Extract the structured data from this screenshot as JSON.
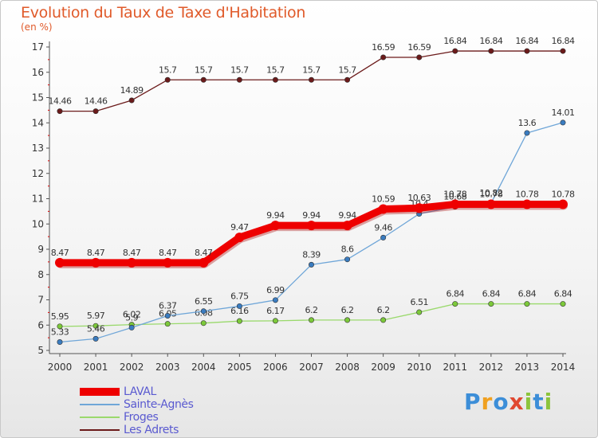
{
  "title": "Evolution du Taux de Taxe d'Habitation",
  "unit_label": "(en %)",
  "brand": {
    "letters": [
      {
        "ch": "P",
        "color": "#3c8ed8"
      },
      {
        "ch": "r",
        "color": "#f0a020"
      },
      {
        "ch": "o",
        "color": "#3c8ed8"
      },
      {
        "ch": "x",
        "color": "#e04830"
      },
      {
        "ch": "i",
        "color": "#8cc43c"
      },
      {
        "ch": "t",
        "color": "#3c8ed8"
      },
      {
        "ch": "i",
        "color": "#8cc43c"
      }
    ]
  },
  "chart_data": {
    "type": "line",
    "title": "Evolution du Taux de Taxe d'Habitation",
    "ylabel": "(en %)",
    "xlabel": "",
    "ylim": [
      5,
      17
    ],
    "yticks": [
      "5",
      "6",
      "7",
      "8",
      "9",
      "10",
      "11",
      "12",
      "13",
      "14",
      "15",
      "16",
      "17"
    ],
    "x": [
      "2000",
      "2001",
      "2002",
      "2003",
      "2004",
      "2005",
      "2006",
      "2007",
      "2008",
      "2009",
      "2010",
      "2011",
      "2012",
      "2013",
      "2014"
    ],
    "legend_position": "bottom-left",
    "series": [
      {
        "name": "Les Adrets",
        "color": "#6b1a1a",
        "marker": "#6b1a1a",
        "values": [
          14.46,
          14.46,
          14.89,
          15.7,
          15.7,
          15.7,
          15.7,
          15.7,
          15.7,
          16.59,
          16.59,
          16.84,
          16.84,
          16.84,
          16.84
        ],
        "labels": [
          "14.46",
          "14.46",
          "14.89",
          "15.7",
          "15.7",
          "15.7",
          "15.7",
          "15.7",
          "15.7",
          "16.59",
          "16.59",
          "16.84",
          "16.84",
          "16.84",
          "16.84"
        ]
      },
      {
        "name": "Froges",
        "color": "#9ad96c",
        "marker": "#7cc93a",
        "values": [
          5.95,
          5.97,
          6.02,
          6.05,
          6.08,
          6.16,
          6.17,
          6.2,
          6.2,
          6.2,
          6.51,
          6.84,
          6.84,
          6.84,
          6.84
        ],
        "labels": [
          "5.95",
          "5.97",
          "6.02",
          "6.05",
          "6.08",
          "6.16",
          "6.17",
          "6.2",
          "6.2",
          "6.2",
          "6.51",
          "6.84",
          "6.84",
          "6.84",
          "6.84"
        ]
      },
      {
        "name": "Sainte-Agnès",
        "color": "#6fa6d8",
        "marker": "#3a7cc0",
        "values": [
          5.33,
          5.46,
          5.9,
          6.37,
          6.55,
          6.75,
          6.99,
          8.39,
          8.6,
          9.46,
          10.4,
          10.68,
          10.82,
          13.6,
          14.01
        ],
        "labels": [
          "5.33",
          "5.46",
          "5.9",
          "6.37",
          "6.55",
          "6.75",
          "6.99",
          "8.39",
          "8.6",
          "9.46",
          "10.4",
          "10.68",
          "10.82",
          "13.6",
          "14.01"
        ]
      },
      {
        "name": "LAVAL",
        "color": "#ee0000",
        "marker": "#ee0000",
        "values": [
          8.47,
          8.47,
          8.47,
          8.47,
          8.47,
          9.47,
          9.94,
          9.94,
          9.94,
          10.59,
          10.63,
          10.78,
          10.78,
          10.78,
          10.78
        ],
        "labels": [
          "8.47",
          "8.47",
          "8.47",
          "8.47",
          "8.47",
          "9.47",
          "9.94",
          "9.94",
          "9.94",
          "10.59",
          "10.63",
          "10.78",
          "10.78",
          "10.78",
          "10.78"
        ]
      }
    ],
    "legend": [
      {
        "name": "LAVAL",
        "color": "#ee0000",
        "thick": true
      },
      {
        "name": "Sainte-Agnès",
        "color": "#6fa6d8",
        "thick": false
      },
      {
        "name": "Froges",
        "color": "#9ad96c",
        "thick": false
      },
      {
        "name": "Les Adrets",
        "color": "#6b1a1a",
        "thick": false
      }
    ]
  }
}
